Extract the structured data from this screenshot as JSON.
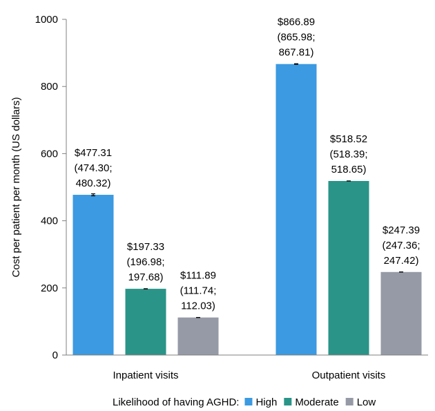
{
  "chart_data": {
    "type": "bar",
    "title": "",
    "xlabel": "",
    "ylabel": "Cost per patient per month (US dollars)",
    "ylim": [
      0,
      1000
    ],
    "yticks": [
      0,
      200,
      400,
      600,
      800,
      1000
    ],
    "categories": [
      "Inpatient visits",
      "Outpatient visits"
    ],
    "legend": {
      "title": "Likelihood of having AGHD:",
      "placement": "bottom"
    },
    "series": [
      {
        "name": "High",
        "color": "#3b9ae1",
        "values": [
          477.31,
          866.89
        ],
        "ci_low": [
          474.3,
          865.98
        ],
        "ci_high": [
          480.32,
          867.81
        ],
        "labels": [
          [
            "$477.31",
            "(474.30;",
            "480.32)"
          ],
          [
            "$866.89",
            "(865.98;",
            "867.81)"
          ]
        ]
      },
      {
        "name": "Moderate",
        "color": "#2a9488",
        "values": [
          197.33,
          518.52
        ],
        "ci_low": [
          196.98,
          518.39
        ],
        "ci_high": [
          197.68,
          518.65
        ],
        "labels": [
          [
            "$197.33",
            "(196.98;",
            "197.68)"
          ],
          [
            "$518.52",
            "(518.39;",
            "518.65)"
          ]
        ]
      },
      {
        "name": "Low",
        "color": "#959aa6",
        "values": [
          111.89,
          247.39
        ],
        "ci_low": [
          111.74,
          247.36
        ],
        "ci_high": [
          112.03,
          247.42
        ],
        "labels": [
          [
            "$111.89",
            "(111.74;",
            "112.03)"
          ],
          [
            "$247.39",
            "(247.36;",
            "247.42)"
          ]
        ]
      }
    ]
  }
}
